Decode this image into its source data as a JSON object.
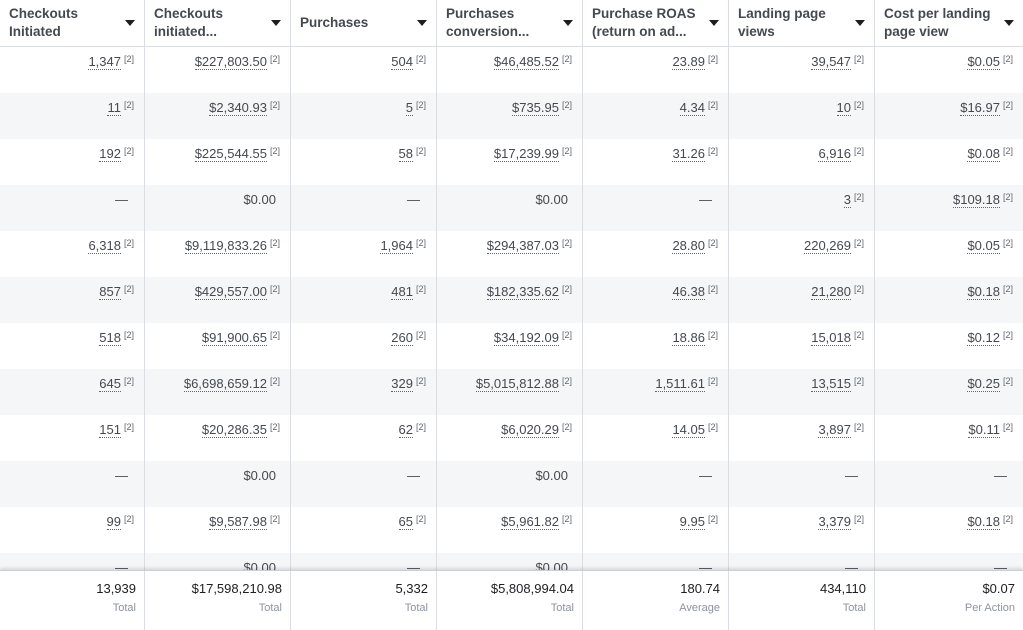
{
  "columns": [
    {
      "label": "Checkouts Initiated"
    },
    {
      "label": "Checkouts initiated..."
    },
    {
      "label": "Purchases"
    },
    {
      "label": "Purchases conversion..."
    },
    {
      "label": "Purchase ROAS (return on ad..."
    },
    {
      "label": "Landing page views"
    },
    {
      "label": "Cost per landing page view"
    }
  ],
  "footnote": "[2]",
  "rows": [
    [
      "1,347",
      "$227,803.50",
      "504",
      "$46,485.52",
      "23.89",
      "39,547",
      "$0.05"
    ],
    [
      "11",
      "$2,340.93",
      "5",
      "$735.95",
      "4.34",
      "10",
      "$16.97"
    ],
    [
      "192",
      "$225,544.55",
      "58",
      "$17,239.99",
      "31.26",
      "6,916",
      "$0.08"
    ],
    [
      "—",
      "$0.00",
      "—",
      "$0.00",
      "—",
      "3",
      "$109.18"
    ],
    [
      "6,318",
      "$9,119,833.26",
      "1,964",
      "$294,387.03",
      "28.80",
      "220,269",
      "$0.05"
    ],
    [
      "857",
      "$429,557.00",
      "481",
      "$182,335.62",
      "46.38",
      "21,280",
      "$0.18"
    ],
    [
      "518",
      "$91,900.65",
      "260",
      "$34,192.09",
      "18.86",
      "15,018",
      "$0.12"
    ],
    [
      "645",
      "$6,698,659.12",
      "329",
      "$5,015,812.88",
      "1,511.61",
      "13,515",
      "$0.25"
    ],
    [
      "151",
      "$20,286.35",
      "62",
      "$6,020.29",
      "14.05",
      "3,897",
      "$0.11"
    ],
    [
      "—",
      "$0.00",
      "—",
      "$0.00",
      "—",
      "—",
      "—"
    ],
    [
      "99",
      "$9,587.98",
      "65",
      "$5,961.82",
      "9.95",
      "3,379",
      "$0.18"
    ],
    [
      "—",
      "$0.00",
      "—",
      "$0.00",
      "—",
      "—",
      "—"
    ]
  ],
  "totals": [
    {
      "value": "13,939",
      "label": "Total"
    },
    {
      "value": "$17,598,210.98",
      "label": "Total"
    },
    {
      "value": "5,332",
      "label": "Total"
    },
    {
      "value": "$5,808,994.04",
      "label": "Total"
    },
    {
      "value": "180.74",
      "label": "Average"
    },
    {
      "value": "434,110",
      "label": "Total"
    },
    {
      "value": "$0.07",
      "label": "Per Action"
    }
  ]
}
